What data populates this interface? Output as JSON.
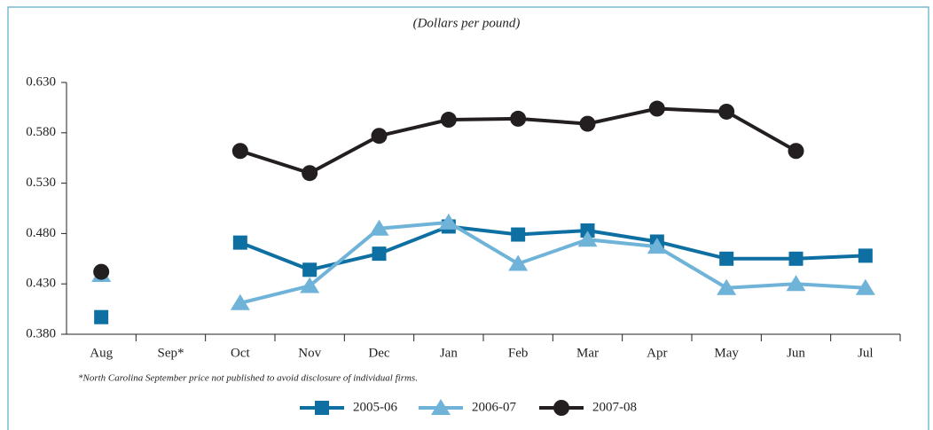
{
  "chart_data": {
    "type": "line",
    "subtitle": "(Dollars per pound)",
    "note": "*North Carolina September price not published to avoid disclosure of individual firms.",
    "categories": [
      "Aug",
      "Sep*",
      "Oct",
      "Nov",
      "Dec",
      "Jan",
      "Feb",
      "Mar",
      "Apr",
      "May",
      "Jun",
      "Jul"
    ],
    "series": [
      {
        "name": "2005-06",
        "color": "#0e6fa3",
        "marker": "square",
        "values": [
          0.397,
          null,
          0.471,
          0.444,
          0.46,
          0.487,
          0.479,
          0.483,
          0.472,
          0.455,
          0.455,
          0.458
        ]
      },
      {
        "name": "2006-07",
        "color": "#6fb3d8",
        "marker": "triangle",
        "values": [
          0.439,
          null,
          0.411,
          0.428,
          0.485,
          0.491,
          0.45,
          0.474,
          0.467,
          0.426,
          0.43,
          0.426
        ]
      },
      {
        "name": "2007-08",
        "color": "#231f20",
        "marker": "circle",
        "values": [
          0.442,
          null,
          0.562,
          0.54,
          0.577,
          0.593,
          0.594,
          0.589,
          0.604,
          0.601,
          0.562,
          null
        ]
      }
    ],
    "ylim": [
      0.38,
      0.63
    ],
    "yticks": [
      {
        "value": 0.38,
        "label": "0.380"
      },
      {
        "value": 0.43,
        "label": "0.430"
      },
      {
        "value": 0.48,
        "label": "0.480"
      },
      {
        "value": 0.53,
        "label": "0.530"
      },
      {
        "value": 0.58,
        "label": "0.580"
      },
      {
        "value": 0.63,
        "label": "0.630"
      }
    ],
    "legend": "bottom"
  }
}
